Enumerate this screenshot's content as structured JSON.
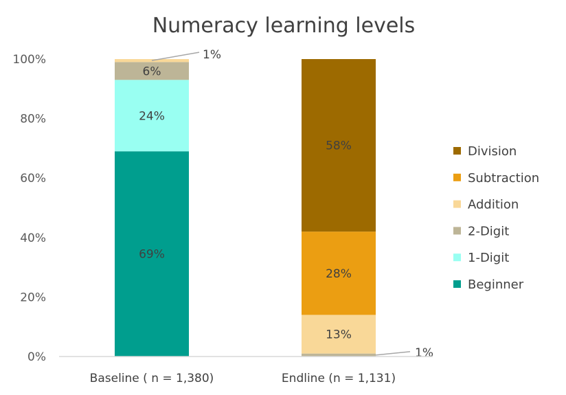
{
  "chart_data": {
    "type": "bar",
    "stacked": true,
    "title": "Numeracy learning levels",
    "xlabel": "",
    "ylabel": "",
    "ylim": [
      0,
      100
    ],
    "yticks": [
      "0%",
      "20%",
      "40%",
      "60%",
      "80%",
      "100%"
    ],
    "categories": [
      "Baseline ( n = 1,380)",
      "Endline (n = 1,131)"
    ],
    "series": [
      {
        "name": "Beginner",
        "color": "#009e8e",
        "values": [
          69,
          0
        ],
        "labels": [
          "69%",
          ""
        ]
      },
      {
        "name": "1-Digit",
        "color": "#99fff2",
        "values": [
          24,
          0
        ],
        "labels": [
          "24%",
          ""
        ]
      },
      {
        "name": "2-Digit",
        "color": "#bdb597",
        "values": [
          6,
          1
        ],
        "labels": [
          "6%",
          "1%"
        ]
      },
      {
        "name": "Addition",
        "color": "#f9d898",
        "values": [
          1,
          13
        ],
        "labels": [
          "1%",
          "13%"
        ]
      },
      {
        "name": "Subtraction",
        "color": "#eb9e12",
        "values": [
          0,
          28
        ],
        "labels": [
          "",
          "28%"
        ]
      },
      {
        "name": "Division",
        "color": "#9d6a00",
        "values": [
          0,
          58
        ],
        "labels": [
          "",
          "58%"
        ]
      }
    ],
    "legend_position": "right",
    "legend_order": [
      "Division",
      "Subtraction",
      "Addition",
      "2-Digit",
      "1-Digit",
      "Beginner"
    ],
    "grid": false
  }
}
